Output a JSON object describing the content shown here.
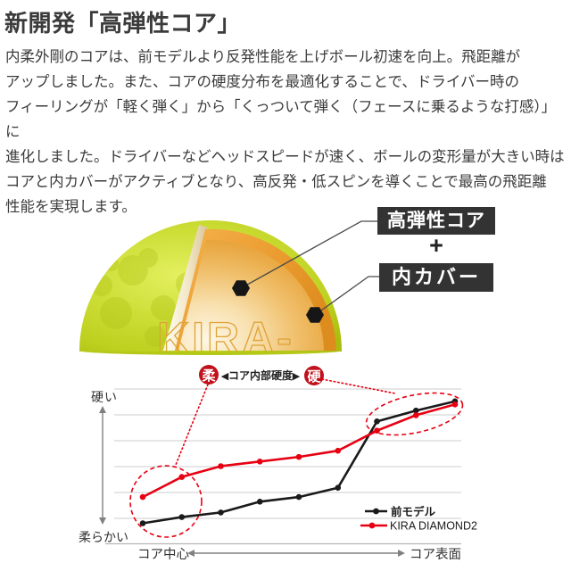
{
  "header": {
    "title": "新開発「高弾性コア」",
    "body": "内柔外剛のコアは、前モデルより反発性能を上げボール初速を向上。飛距離が\nアップしました。また、コアの硬度分布を最適化することで、ドライバー時の\nフィーリングが「軽く弾く」から「くっついて弾く（フェースに乗るような打感）」に\n進化しました。ドライバーなどヘッドスピードが速く、ボールの変形量が大きい時は\nコアと内カバーがアクティブとなり、高反発・低スピンを導くことで最高の飛距離\n性能を実現します。"
  },
  "ball": {
    "logo": "KIRA-",
    "core_label": "高弾性コア",
    "plus": "+",
    "cover_label": "内カバー",
    "colors": {
      "cover_green": "#c6d82f",
      "inner_cover_orange": "#ec9f38",
      "core_center_cream": "#fdf6e3",
      "label_box_bg": "#333333",
      "label_text": "#ffffff"
    }
  },
  "scale": {
    "soft": "柔",
    "hard": "硬",
    "left_arrow": "◀",
    "label": "コア内部硬度",
    "right_arrow": "▶",
    "badge_color": "#c0111c"
  },
  "chart_data": {
    "type": "line",
    "title": "",
    "x_axis": {
      "left_label": "コア中心",
      "right_label": "コア表面",
      "note": "9 equally spaced measurement positions from core center to core surface"
    },
    "y_axis": {
      "top_label": "硬い",
      "bottom_label": "柔らかい",
      "note": "relative hardness estimated from plot, 0 = softest, 1 = hardest (no numeric ticks shown)"
    },
    "ylim": [
      0,
      1
    ],
    "grid": true,
    "gridline_count": 6,
    "legend_position": "lower right",
    "annotation_color": "#e60012",
    "series": [
      {
        "name": "前モデル",
        "color": "#1a1a1a",
        "values": [
          0.13,
          0.17,
          0.2,
          0.27,
          0.3,
          0.36,
          0.79,
          0.86,
          0.92
        ]
      },
      {
        "name": "KIRA DIAMOND2",
        "color": "#e60012",
        "values": [
          0.3,
          0.43,
          0.5,
          0.53,
          0.56,
          0.6,
          0.73,
          0.83,
          0.9
        ]
      }
    ],
    "annotations": [
      {
        "shape": "dashed-circle",
        "linked_badge": "柔",
        "covers": "first two points near コア中心 (KIRA DIAMOND2 core center is softer)"
      },
      {
        "shape": "dashed-ellipse",
        "linked_badge": "硬",
        "covers": "last three points near コア表面 (core surface is hard)"
      }
    ]
  }
}
